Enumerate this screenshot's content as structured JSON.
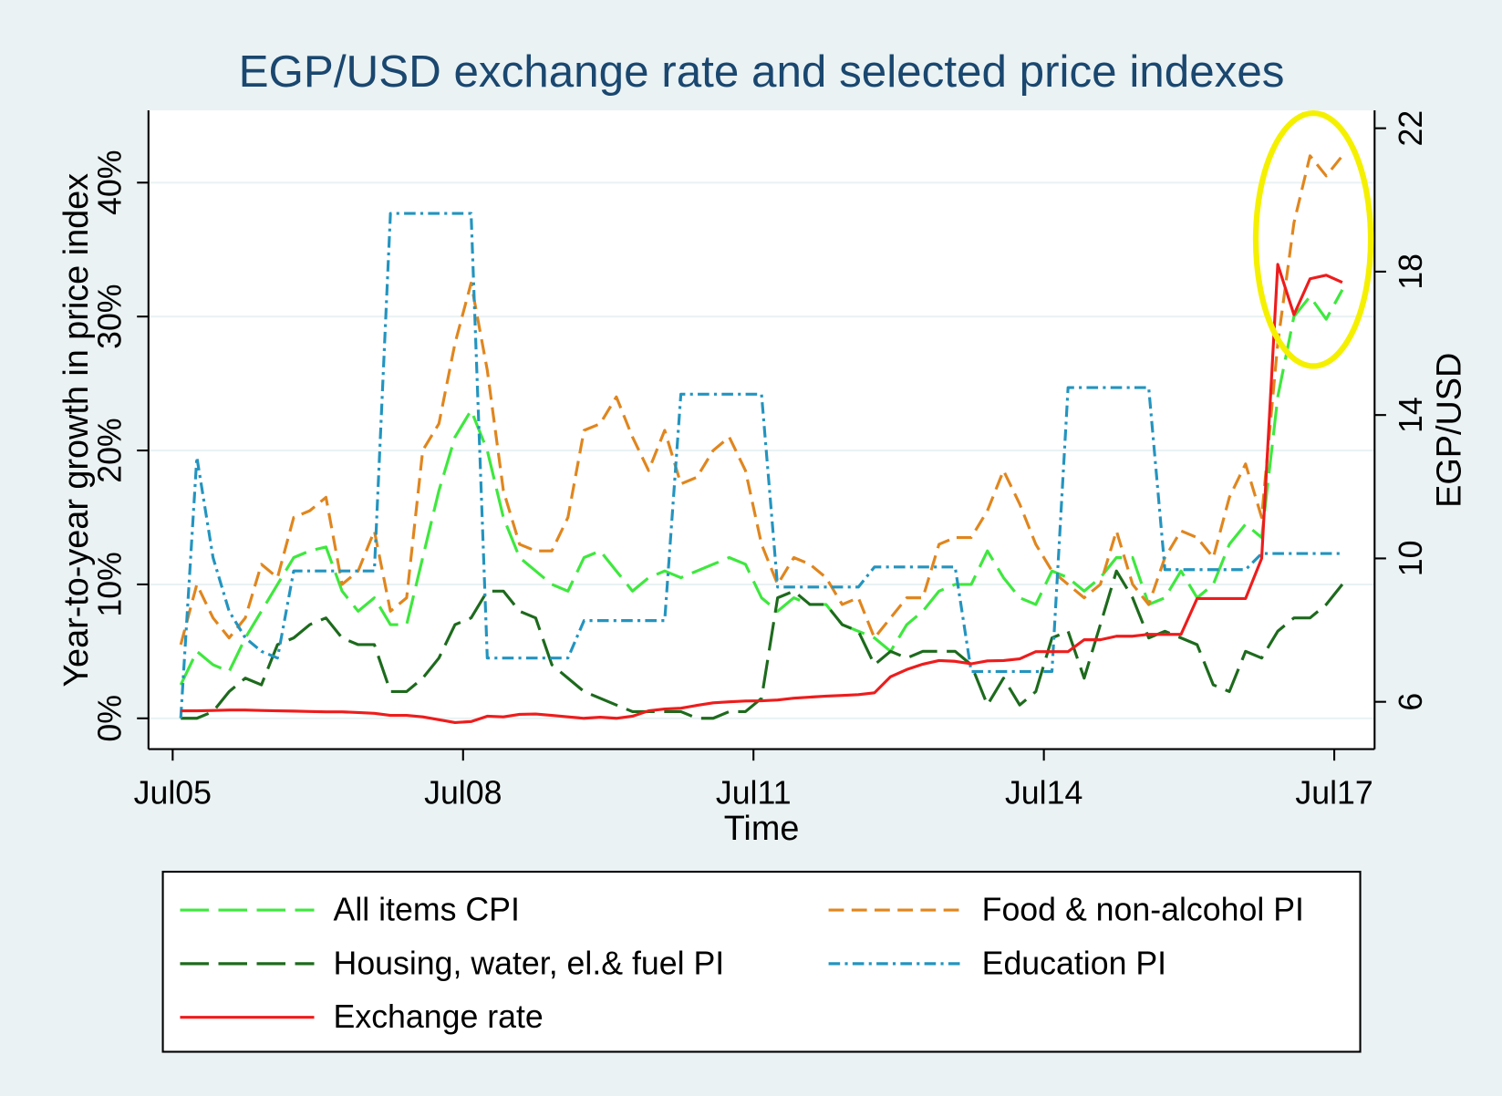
{
  "chart_data": {
    "type": "line",
    "title": "EGP/USD exchange rate and selected price indexes",
    "x_label": "Time",
    "y_label": "Year-to-year growth in price index",
    "y2_label": "EGP/USD",
    "x": [
      "2005-08",
      "2005-10",
      "2005-12",
      "2006-02",
      "2006-04",
      "2006-06",
      "2006-08",
      "2006-10",
      "2006-12",
      "2007-02",
      "2007-04",
      "2007-06",
      "2007-08",
      "2007-10",
      "2007-12",
      "2008-02",
      "2008-04",
      "2008-06",
      "2008-08",
      "2008-10",
      "2008-12",
      "2009-02",
      "2009-04",
      "2009-06",
      "2009-08",
      "2009-10",
      "2009-12",
      "2010-02",
      "2010-04",
      "2010-06",
      "2010-08",
      "2010-10",
      "2010-12",
      "2011-02",
      "2011-04",
      "2011-06",
      "2011-08",
      "2011-10",
      "2011-12",
      "2012-02",
      "2012-04",
      "2012-06",
      "2012-08",
      "2012-10",
      "2012-12",
      "2013-02",
      "2013-04",
      "2013-06",
      "2013-08",
      "2013-10",
      "2013-12",
      "2014-02",
      "2014-04",
      "2014-06",
      "2014-08",
      "2014-10",
      "2014-12",
      "2015-02",
      "2015-04",
      "2015-06",
      "2015-08",
      "2015-10",
      "2015-12",
      "2016-02",
      "2016-04",
      "2016-06",
      "2016-08",
      "2016-10",
      "2016-12",
      "2017-02",
      "2017-04",
      "2017-06",
      "2017-08"
    ],
    "xlim": [
      "2005-04",
      "2017-12"
    ],
    "xticks": [
      {
        "value": "2005-07",
        "label": "Jul05"
      },
      {
        "value": "2008-07",
        "label": "Jul08"
      },
      {
        "value": "2011-07",
        "label": "Jul11"
      },
      {
        "value": "2014-07",
        "label": "Jul14"
      },
      {
        "value": "2017-07",
        "label": "Jul17"
      }
    ],
    "ylim": [
      -2.3,
      45.4
    ],
    "yticks": [
      {
        "value": 0,
        "label": "0%"
      },
      {
        "value": 10,
        "label": "10%"
      },
      {
        "value": 20,
        "label": "20%"
      },
      {
        "value": 30,
        "label": "30%"
      },
      {
        "value": 40,
        "label": "40%"
      }
    ],
    "y2lim": [
      4.68,
      22.5
    ],
    "y2ticks": [
      6,
      10,
      14,
      18,
      22
    ],
    "grid": true,
    "series": [
      {
        "name": "All items CPI",
        "color": "#3ee83e",
        "style": "long-dash",
        "values": [
          2.5,
          5,
          4,
          3.5,
          6,
          8,
          10,
          12,
          12.5,
          12.8,
          9.5,
          8,
          9,
          7,
          7,
          12,
          17,
          21,
          23,
          20,
          15,
          12,
          11,
          10,
          9.5,
          12,
          12.5,
          11,
          9.5,
          10.5,
          11,
          10.5,
          11,
          11.5,
          12,
          11.5,
          9,
          8,
          9,
          8.5,
          8.5,
          7,
          6.5,
          6,
          5,
          7,
          8,
          9.5,
          10,
          10,
          12.5,
          10.5,
          9,
          8.5,
          11,
          10.5,
          9.5,
          10.5,
          12,
          12,
          8.5,
          9,
          11,
          9,
          10,
          13,
          14.5,
          13.5,
          24,
          30,
          31.5,
          29.8,
          32
        ]
      },
      {
        "name": "Food & non-alcohol PI",
        "color": "#e0861e",
        "style": "dash",
        "values": [
          5.5,
          10,
          7.5,
          6,
          7.5,
          11.5,
          10.5,
          15,
          15.5,
          16.5,
          10,
          11,
          14,
          8,
          9,
          20,
          22,
          28,
          32.5,
          26,
          17,
          13,
          12.5,
          12.5,
          15,
          21.5,
          22,
          24,
          21,
          18.5,
          21.5,
          17.5,
          18,
          20,
          21,
          18.5,
          13,
          10,
          12,
          11.5,
          10.5,
          8.5,
          9,
          6,
          7.5,
          9,
          9,
          13,
          13.5,
          13.5,
          15.5,
          18.5,
          16,
          13,
          11,
          10,
          9,
          10,
          14,
          10,
          8.5,
          12,
          14,
          13.5,
          12,
          16.5,
          19,
          15,
          28,
          37,
          42,
          40.5,
          42
        ]
      },
      {
        "name": "Housing, water, el.& fuel PI",
        "color": "#1d6a1d",
        "style": "long-dash",
        "values": [
          0,
          0,
          0.5,
          2,
          3,
          2.5,
          5.5,
          6,
          7,
          7.5,
          6,
          5.5,
          5.5,
          2,
          2,
          3,
          4.5,
          7,
          7.5,
          9.5,
          9.5,
          8,
          7.5,
          4,
          3,
          2,
          1.5,
          1,
          0.5,
          0.5,
          0.5,
          0.5,
          0,
          0,
          0.5,
          0.5,
          1.5,
          9,
          9.5,
          8.5,
          8.5,
          7,
          6.5,
          4,
          5,
          4.5,
          5,
          5,
          5,
          4,
          1,
          3,
          1,
          2,
          6,
          6.5,
          3,
          7,
          11,
          9,
          6,
          6.5,
          6,
          5.5,
          2.5,
          2,
          5,
          4.5,
          6.5,
          7.5,
          7.5,
          8.5,
          10
        ]
      },
      {
        "name": "Education PI",
        "color": "#2394bf",
        "style": "dash-dot",
        "values": [
          0,
          19.5,
          12,
          8,
          6,
          5,
          4.5,
          11,
          11,
          11,
          11,
          11,
          11,
          37.7,
          37.7,
          37.7,
          37.7,
          37.7,
          37.7,
          4.5,
          4.5,
          4.5,
          4.5,
          4.5,
          4.5,
          7.3,
          7.3,
          7.3,
          7.3,
          7.3,
          7.3,
          24.2,
          24.2,
          24.2,
          24.2,
          24.2,
          24.2,
          9.8,
          9.8,
          9.8,
          9.8,
          9.8,
          9.8,
          11.3,
          11.3,
          11.3,
          11.3,
          11.3,
          11.3,
          3.5,
          3.5,
          3.5,
          3.5,
          3.5,
          3.5,
          24.7,
          24.7,
          24.7,
          24.7,
          24.7,
          24.7,
          11.1,
          11.1,
          11.1,
          11.1,
          11.1,
          11.1,
          12.3,
          12.3,
          12.3,
          12.3,
          12.3,
          12.3
        ]
      },
      {
        "name": "Exchange rate",
        "color": "#ee1c1c",
        "style": "solid",
        "axis": "y2",
        "values": [
          5.75,
          5.75,
          5.76,
          5.77,
          5.77,
          5.76,
          5.75,
          5.74,
          5.73,
          5.72,
          5.72,
          5.7,
          5.68,
          5.62,
          5.62,
          5.58,
          5.5,
          5.42,
          5.45,
          5.6,
          5.58,
          5.65,
          5.66,
          5.62,
          5.58,
          5.54,
          5.57,
          5.54,
          5.6,
          5.75,
          5.8,
          5.82,
          5.9,
          5.97,
          6.0,
          6.02,
          6.03,
          6.05,
          6.1,
          6.13,
          6.16,
          6.18,
          6.2,
          6.25,
          6.7,
          6.9,
          7.05,
          7.15,
          7.13,
          7.06,
          7.14,
          7.15,
          7.2,
          7.4,
          7.4,
          7.4,
          7.73,
          7.73,
          7.83,
          7.83,
          7.88,
          7.88,
          7.88,
          8.88,
          8.88,
          8.88,
          8.88,
          10,
          18.2,
          16.8,
          17.8,
          17.9,
          17.7
        ]
      }
    ]
  }
}
